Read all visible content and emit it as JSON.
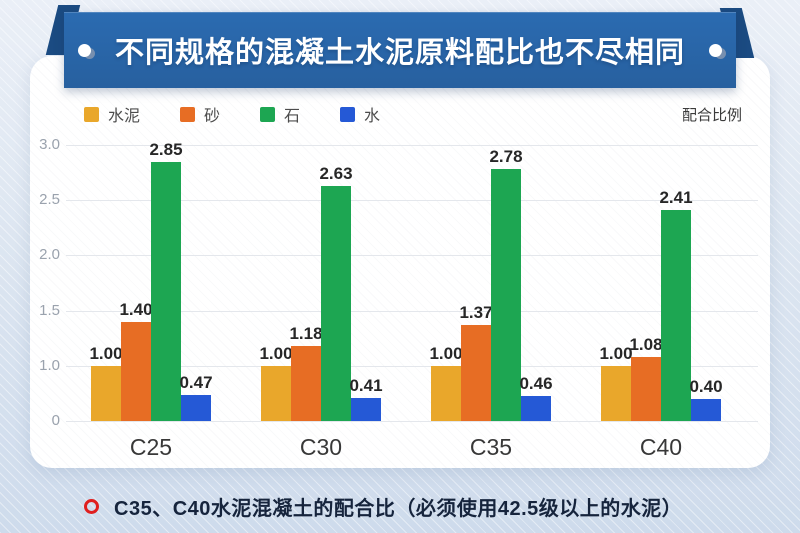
{
  "header": {
    "title": "不同规格的混凝土水泥原料配比也不尽相同"
  },
  "theme": {
    "ribbon_blue": "#2B6BB1",
    "ribbon_fold_blue": "#1B4B82",
    "page_background": "#DDE6F1",
    "card_background": "#FFFFFF",
    "caption_bullet_red": "#E01F1F"
  },
  "chart_data": {
    "type": "bar",
    "title": "",
    "unit_label": "配合比例",
    "categories": [
      "C25",
      "C30",
      "C35",
      "C40"
    ],
    "series": [
      {
        "name": "水泥",
        "color": "#E9A72B",
        "values": [
          1.0,
          1.0,
          1.0,
          1.0
        ]
      },
      {
        "name": "砂",
        "color": "#E76D24",
        "values": [
          1.4,
          1.18,
          1.37,
          1.08
        ]
      },
      {
        "name": "石",
        "color": "#1DA652",
        "values": [
          2.85,
          2.63,
          2.78,
          2.41
        ]
      },
      {
        "name": "水",
        "color": "#2559D6",
        "values": [
          0.47,
          0.41,
          0.46,
          0.4
        ]
      }
    ],
    "value_label_format": "2-decimals",
    "y_axis_ticks": [
      "3.0",
      "2.5",
      "2.0",
      "1.5",
      "1.0",
      "0"
    ],
    "ylim": [
      0,
      3.0
    ],
    "grid": true,
    "legend_position": "top-left",
    "xlabel": "",
    "ylabel": ""
  },
  "caption": {
    "text": "C35、C40水泥混凝土的配合比（必须使用42.5级以上的水泥）"
  }
}
